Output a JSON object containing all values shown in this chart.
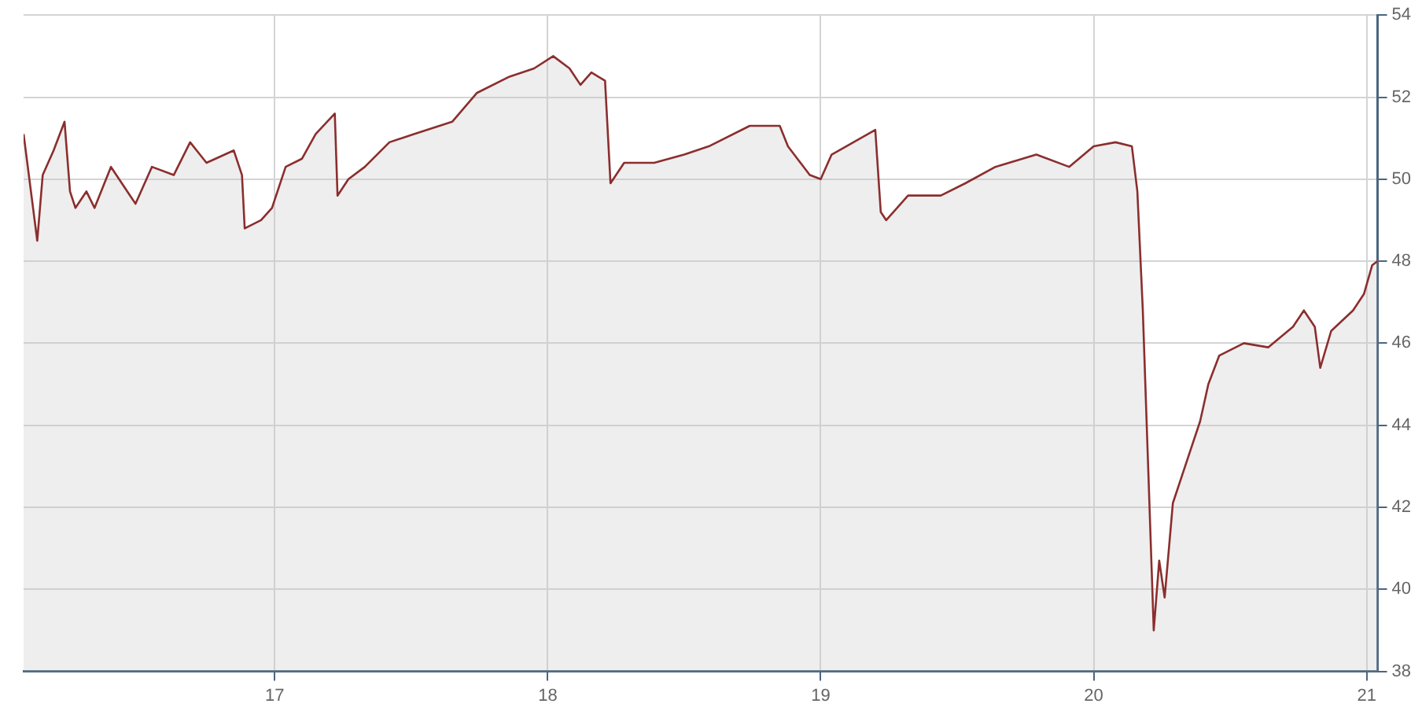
{
  "chart_data": {
    "type": "area",
    "x": [
      16.08,
      16.13,
      16.15,
      16.19,
      16.23,
      16.25,
      16.27,
      16.31,
      16.34,
      16.4,
      16.46,
      16.49,
      16.55,
      16.63,
      16.69,
      16.75,
      16.85,
      16.88,
      16.89,
      16.95,
      16.99,
      17.04,
      17.1,
      17.15,
      17.22,
      17.23,
      17.27,
      17.33,
      17.42,
      17.51,
      17.65,
      17.74,
      17.86,
      17.95,
      18.02,
      18.08,
      18.12,
      18.16,
      18.21,
      18.23,
      18.28,
      18.39,
      18.5,
      18.59,
      18.74,
      18.85,
      18.88,
      18.96,
      19.0,
      19.04,
      19.12,
      19.2,
      19.22,
      19.24,
      19.32,
      19.44,
      19.53,
      19.64,
      19.79,
      19.91,
      20.0,
      20.08,
      20.14,
      20.16,
      20.18,
      20.2,
      20.22,
      20.24,
      20.26,
      20.29,
      20.35,
      20.39,
      20.42,
      20.46,
      20.55,
      20.64,
      20.73,
      20.77,
      20.81,
      20.83,
      20.87,
      20.95,
      20.99,
      21.02,
      21.04
    ],
    "series": [
      {
        "color": "#8b2e2e",
        "values": [
          51.1,
          48.5,
          50.1,
          50.7,
          51.4,
          49.7,
          49.3,
          49.7,
          49.3,
          50.3,
          49.7,
          49.4,
          50.3,
          50.1,
          50.9,
          50.4,
          50.7,
          50.1,
          48.8,
          49.0,
          49.3,
          50.3,
          50.5,
          51.1,
          51.6,
          49.6,
          50.0,
          50.3,
          50.9,
          51.1,
          51.4,
          52.1,
          52.5,
          52.7,
          53.0,
          52.7,
          52.3,
          52.6,
          52.4,
          49.9,
          50.4,
          50.4,
          50.6,
          50.8,
          51.3,
          51.3,
          50.8,
          50.1,
          50.0,
          50.6,
          50.9,
          51.2,
          49.2,
          49.0,
          49.6,
          49.6,
          49.9,
          50.3,
          50.6,
          50.3,
          50.8,
          50.9,
          50.8,
          49.7,
          46.8,
          42.9,
          39.0,
          40.7,
          39.8,
          42.1,
          43.3,
          44.1,
          45.0,
          45.7,
          46.0,
          45.9,
          46.4,
          46.8,
          46.4,
          45.4,
          46.3,
          46.8,
          47.2,
          47.9,
          48.0
        ]
      }
    ],
    "xlim": [
      16.08,
      21.04
    ],
    "xticks": [
      17,
      18,
      19,
      20,
      21
    ],
    "ylim": [
      38,
      54
    ],
    "yticks": [
      38,
      40,
      42,
      44,
      46,
      48,
      50,
      52,
      54
    ],
    "grid": true,
    "legend": false,
    "marker": "none",
    "line_style": "solid"
  }
}
